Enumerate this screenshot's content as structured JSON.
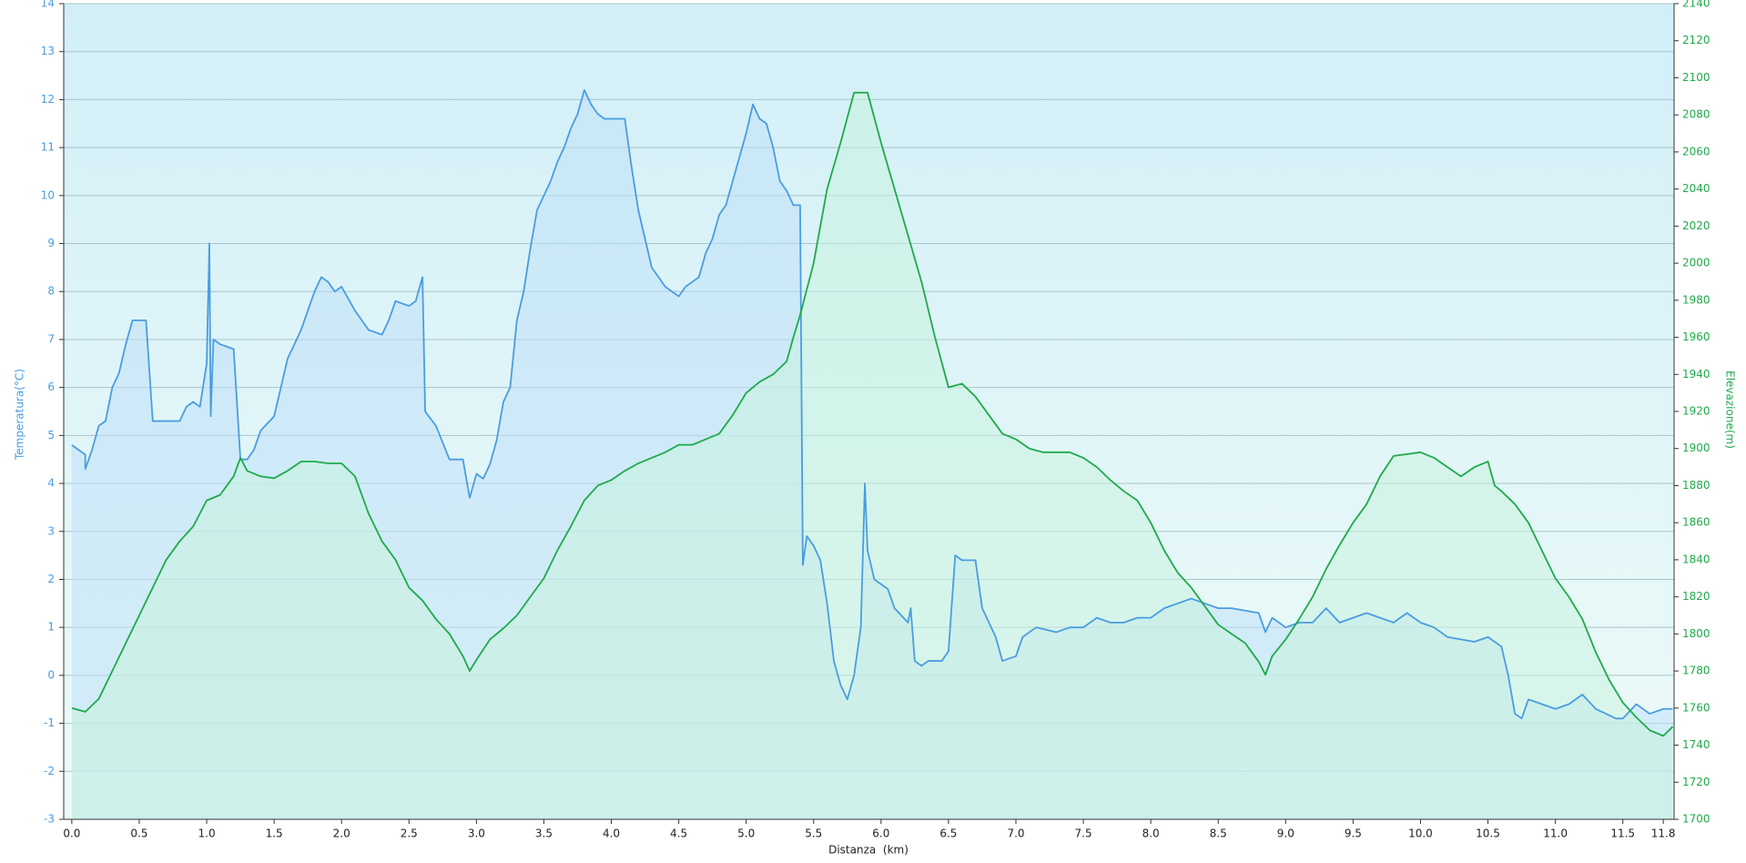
{
  "chart_data": {
    "type": "area",
    "x_label": "Distanza  (km)",
    "y_label": "Temperatura(°C)",
    "y2_label": "Elevazione(m)",
    "xlim": [
      -0.06,
      11.88
    ],
    "ylim": [
      -3,
      14
    ],
    "y2lim": [
      1700,
      2140
    ],
    "grid": true,
    "xticks": [
      {
        "value": 0,
        "label": "0.0"
      },
      0.5,
      {
        "value": 1,
        "label": "1.0"
      },
      1.5,
      {
        "value": 2,
        "label": "2.0"
      },
      2.5,
      {
        "value": 3,
        "label": "3.0"
      },
      3.5,
      {
        "value": 4,
        "label": "4.0"
      },
      4.5,
      {
        "value": 5,
        "label": "5.0"
      },
      5.5,
      {
        "value": 6,
        "label": "6.0"
      },
      6.5,
      {
        "value": 7,
        "label": "7.0"
      },
      7.5,
      {
        "value": 8,
        "label": "8.0"
      },
      8.5,
      {
        "value": 9,
        "label": "9.0"
      },
      9.5,
      {
        "value": 10,
        "label": "10.0"
      },
      10.5,
      {
        "value": 11,
        "label": "11.0"
      },
      11.5,
      11.8
    ],
    "yticks": [
      -3,
      -2,
      -1,
      0,
      1,
      2,
      3,
      4,
      5,
      6,
      7,
      8,
      9,
      10,
      11,
      12,
      13,
      14
    ],
    "y2ticks": [
      1700,
      1720,
      1740,
      1760,
      1780,
      1800,
      1820,
      1840,
      1860,
      1880,
      1900,
      1920,
      1940,
      1960,
      1980,
      2000,
      2020,
      2040,
      2060,
      2080,
      2100,
      2120,
      2140
    ],
    "series": [
      {
        "name": "Temperatura",
        "axis": "y",
        "color": "#4a9de0",
        "fill": "#bfe0f8",
        "x": [
          0.0,
          0.05,
          0.1,
          0.1,
          0.15,
          0.2,
          0.25,
          0.3,
          0.35,
          0.4,
          0.45,
          0.55,
          0.6,
          0.8,
          0.85,
          0.9,
          0.95,
          1.0,
          1.02,
          1.03,
          1.05,
          1.1,
          1.2,
          1.25,
          1.3,
          1.35,
          1.4,
          1.5,
          1.55,
          1.6,
          1.7,
          1.75,
          1.8,
          1.85,
          1.9,
          1.95,
          2.0,
          2.1,
          2.2,
          2.3,
          2.35,
          2.4,
          2.5,
          2.55,
          2.6,
          2.62,
          2.7,
          2.8,
          2.9,
          2.95,
          3.0,
          3.05,
          3.1,
          3.15,
          3.2,
          3.25,
          3.3,
          3.35,
          3.4,
          3.45,
          3.5,
          3.55,
          3.6,
          3.65,
          3.7,
          3.75,
          3.8,
          3.85,
          3.9,
          3.95,
          4.1,
          4.15,
          4.2,
          4.25,
          4.3,
          4.35,
          4.4,
          4.45,
          4.5,
          4.55,
          4.6,
          4.65,
          4.7,
          4.75,
          4.8,
          4.85,
          4.9,
          4.95,
          5.0,
          5.05,
          5.1,
          5.15,
          5.2,
          5.25,
          5.3,
          5.35,
          5.4,
          5.42,
          5.45,
          5.5,
          5.55,
          5.6,
          5.65,
          5.7,
          5.75,
          5.8,
          5.85,
          5.88,
          5.9,
          5.95,
          6.05,
          6.1,
          6.2,
          6.22,
          6.25,
          6.3,
          6.35,
          6.45,
          6.5,
          6.55,
          6.6,
          6.7,
          6.75,
          6.8,
          6.85,
          6.9,
          7.0,
          7.05,
          7.15,
          7.3,
          7.4,
          7.5,
          7.6,
          7.7,
          7.8,
          7.9,
          8.0,
          8.1,
          8.3,
          8.4,
          8.5,
          8.6,
          8.8,
          8.85,
          8.9,
          9.0,
          9.1,
          9.2,
          9.3,
          9.4,
          9.5,
          9.6,
          9.7,
          9.8,
          9.9,
          10.0,
          10.1,
          10.2,
          10.4,
          10.5,
          10.6,
          10.65,
          10.7,
          10.75,
          10.8,
          11.0,
          11.1,
          11.2,
          11.3,
          11.45,
          11.5,
          11.6,
          11.7,
          11.8,
          11.87
        ],
        "values": [
          4.8,
          4.7,
          4.6,
          4.3,
          4.7,
          5.2,
          5.3,
          6.0,
          6.3,
          6.9,
          7.4,
          7.4,
          5.3,
          5.3,
          5.6,
          5.7,
          5.6,
          6.5,
          9.0,
          5.4,
          7.0,
          6.9,
          6.8,
          4.5,
          4.5,
          4.7,
          5.1,
          5.4,
          6.0,
          6.6,
          7.2,
          7.6,
          8.0,
          8.3,
          8.2,
          8.0,
          8.1,
          7.6,
          7.2,
          7.1,
          7.4,
          7.8,
          7.7,
          7.8,
          8.3,
          5.5,
          5.2,
          4.5,
          4.5,
          3.7,
          4.2,
          4.1,
          4.4,
          4.9,
          5.7,
          6.0,
          7.4,
          8.0,
          8.9,
          9.7,
          10.0,
          10.3,
          10.7,
          11.0,
          11.4,
          11.7,
          12.2,
          11.9,
          11.7,
          11.6,
          11.6,
          10.6,
          9.7,
          9.1,
          8.5,
          8.3,
          8.1,
          8.0,
          7.9,
          8.1,
          8.2,
          8.3,
          8.8,
          9.1,
          9.6,
          9.8,
          10.3,
          10.8,
          11.3,
          11.9,
          11.6,
          11.5,
          11.0,
          10.3,
          10.1,
          9.8,
          9.8,
          2.3,
          2.9,
          2.7,
          2.4,
          1.5,
          0.3,
          -0.2,
          -0.5,
          0.0,
          1.0,
          4.0,
          2.6,
          2.0,
          1.8,
          1.4,
          1.1,
          1.4,
          0.3,
          0.2,
          0.3,
          0.3,
          0.5,
          2.5,
          2.4,
          2.4,
          1.4,
          1.1,
          0.8,
          0.3,
          0.4,
          0.8,
          1.0,
          0.9,
          1.0,
          1.0,
          1.2,
          1.1,
          1.1,
          1.2,
          1.2,
          1.4,
          1.6,
          1.5,
          1.4,
          1.4,
          1.3,
          0.9,
          1.2,
          1.0,
          1.1,
          1.1,
          1.4,
          1.1,
          1.2,
          1.3,
          1.2,
          1.1,
          1.3,
          1.1,
          1.0,
          0.8,
          0.7,
          0.8,
          0.6,
          0.0,
          -0.8,
          -0.9,
          -0.5,
          -0.7,
          -0.6,
          -0.4,
          -0.7,
          -0.9,
          -0.9,
          -0.6,
          -0.8,
          -0.7,
          -0.7
        ]
      },
      {
        "name": "Elevazione",
        "axis": "y2",
        "color": "#1faa4a",
        "fill": "#c8f3df",
        "x": [
          0.0,
          0.1,
          0.2,
          0.3,
          0.4,
          0.5,
          0.6,
          0.7,
          0.8,
          0.9,
          1.0,
          1.1,
          1.2,
          1.25,
          1.3,
          1.4,
          1.5,
          1.6,
          1.7,
          1.8,
          1.9,
          2.0,
          2.1,
          2.2,
          2.3,
          2.4,
          2.5,
          2.6,
          2.7,
          2.8,
          2.9,
          2.95,
          3.0,
          3.1,
          3.2,
          3.3,
          3.4,
          3.5,
          3.6,
          3.7,
          3.8,
          3.9,
          4.0,
          4.1,
          4.2,
          4.3,
          4.4,
          4.5,
          4.6,
          4.7,
          4.8,
          4.9,
          5.0,
          5.1,
          5.2,
          5.3,
          5.35,
          5.4,
          5.5,
          5.6,
          5.7,
          5.8,
          5.9,
          6.0,
          6.1,
          6.2,
          6.3,
          6.4,
          6.5,
          6.6,
          6.7,
          6.8,
          6.9,
          7.0,
          7.1,
          7.2,
          7.3,
          7.4,
          7.5,
          7.6,
          7.7,
          7.8,
          7.9,
          8.0,
          8.1,
          8.2,
          8.3,
          8.4,
          8.5,
          8.6,
          8.7,
          8.8,
          8.85,
          8.9,
          9.0,
          9.1,
          9.2,
          9.3,
          9.4,
          9.5,
          9.6,
          9.7,
          9.8,
          9.9,
          10.0,
          10.1,
          10.2,
          10.3,
          10.4,
          10.5,
          10.55,
          10.6,
          10.7,
          10.8,
          10.9,
          11.0,
          11.1,
          11.2,
          11.3,
          11.4,
          11.5,
          11.6,
          11.7,
          11.8,
          11.87
        ],
        "values": [
          1760,
          1758,
          1765,
          1780,
          1795,
          1810,
          1825,
          1840,
          1850,
          1858,
          1872,
          1875,
          1885,
          1895,
          1888,
          1885,
          1884,
          1888,
          1893,
          1893,
          1892,
          1892,
          1885,
          1865,
          1850,
          1840,
          1825,
          1818,
          1808,
          1800,
          1788,
          1780,
          1786,
          1797,
          1803,
          1810,
          1820,
          1830,
          1845,
          1858,
          1872,
          1880,
          1883,
          1888,
          1892,
          1895,
          1898,
          1902,
          1902,
          1905,
          1908,
          1918,
          1930,
          1936,
          1940,
          1947,
          1960,
          1972,
          2000,
          2040,
          2065,
          2092,
          2092,
          2065,
          2040,
          2015,
          1990,
          1960,
          1933,
          1935,
          1928,
          1918,
          1908,
          1905,
          1900,
          1898,
          1898,
          1898,
          1895,
          1890,
          1883,
          1877,
          1872,
          1860,
          1845,
          1833,
          1825,
          1815,
          1805,
          1800,
          1795,
          1785,
          1778,
          1788,
          1797,
          1808,
          1820,
          1835,
          1848,
          1860,
          1870,
          1885,
          1896,
          1897,
          1898,
          1895,
          1890,
          1885,
          1890,
          1893,
          1880,
          1877,
          1870,
          1860,
          1845,
          1830,
          1820,
          1808,
          1790,
          1775,
          1763,
          1755,
          1748,
          1745,
          1750
        ]
      }
    ]
  }
}
